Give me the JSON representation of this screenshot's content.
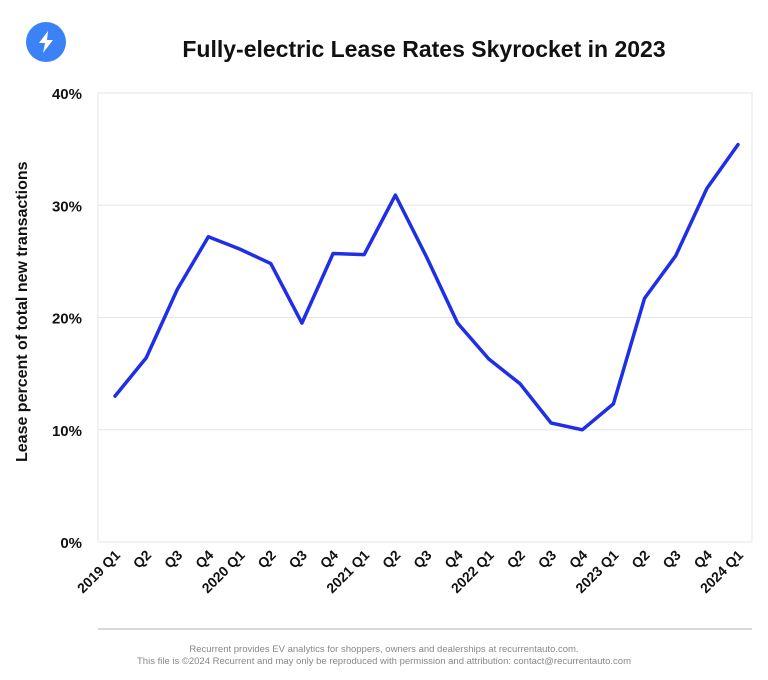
{
  "brand": {
    "logo_icon": "lightning-bolt-icon",
    "logo_color": "#3B82F6"
  },
  "chart_data": {
    "type": "line",
    "title": "Fully-electric Lease Rates Skyrocket in 2023",
    "xlabel": "",
    "ylabel": "Lease percent of total new transactions",
    "categories": [
      "2019 Q1",
      "Q2",
      "Q3",
      "Q4",
      "2020 Q1",
      "Q2",
      "Q3",
      "Q4",
      "2021 Q1",
      "Q2",
      "Q3",
      "Q4",
      "2022 Q1",
      "Q2",
      "Q3",
      "Q4",
      "2023 Q1",
      "Q2",
      "Q3",
      "Q4",
      "2024 Q1"
    ],
    "series": [
      {
        "values": [
          13.0,
          16.4,
          22.5,
          27.2,
          26.1,
          24.8,
          19.5,
          25.7,
          25.6,
          30.9,
          25.4,
          19.5,
          16.3,
          14.1,
          10.6,
          10.0,
          12.3,
          21.7,
          25.5,
          31.5,
          35.4
        ],
        "color": "#1F2FE5"
      }
    ],
    "yticks": [
      "0%",
      "10%",
      "20%",
      "30%",
      "40%"
    ],
    "ylim": [
      0,
      40
    ],
    "grid": true
  },
  "footer": {
    "line1": "Recurrent provides EV analytics for shoppers, owners and dealerships at recurrentauto.com.",
    "line2": "This file is ©2024 Recurrent and may only be reproduced with permission and attribution: contact@recurrentauto.com"
  }
}
